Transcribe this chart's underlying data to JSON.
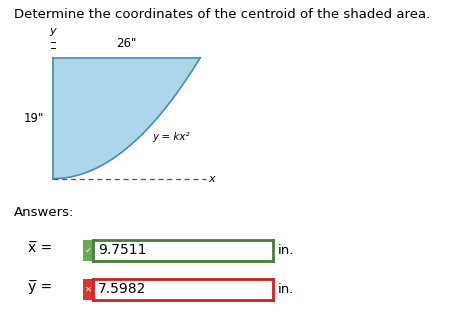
{
  "title": "Determine the coordinates of the centroid of the shaded area.",
  "title_fontsize": 9.5,
  "dim_26": "26\"",
  "dim_19": "19\"",
  "curve_label": "y = kx²",
  "axis_x_label": "x",
  "axis_y_label": "y",
  "answers_label": "Answers:",
  "xbar_label": "x̅ =",
  "ybar_label": "y̅ =",
  "xbar_value": "9.7511",
  "ybar_value": "7.5982",
  "unit": "in.",
  "xbar_box_color": "#4a7c3f",
  "ybar_box_color": "#cc2222",
  "check_bg_color": "#6aaa50",
  "x_bg_color": "#dd3333",
  "shaded_color": "#aed6ea",
  "shaded_edge_color": "#6aafc8",
  "bg_color": "#ffffff"
}
